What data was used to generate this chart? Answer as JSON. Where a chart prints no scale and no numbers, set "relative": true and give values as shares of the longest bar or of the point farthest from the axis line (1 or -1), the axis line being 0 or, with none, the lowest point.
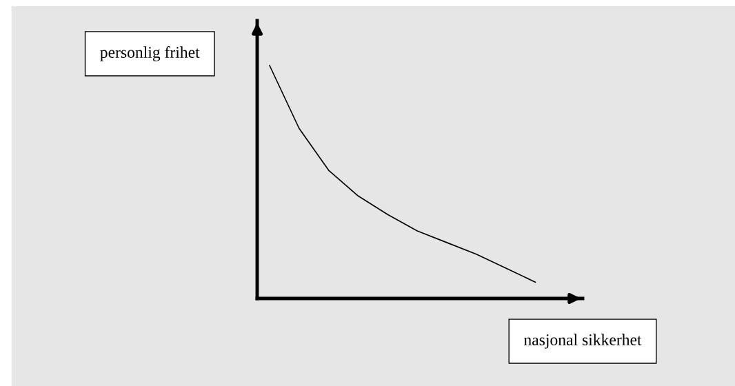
{
  "chart_data": {
    "type": "line",
    "relative": true,
    "xlabel": "nasjonal sikkerhet",
    "ylabel": "personlig frihet",
    "categories": [
      null,
      null,
      null,
      null,
      null,
      null,
      null,
      null,
      null,
      null
    ],
    "series": [
      {
        "color": "#000000",
        "values": [
          1,
          0.73,
          0.55,
          0.44,
          0.36,
          0.29,
          0.24,
          0.19,
          0.13,
          0.07
        ]
      }
    ],
    "grid": false,
    "legend": false,
    "marker": "none",
    "line_style": "solid"
  }
}
